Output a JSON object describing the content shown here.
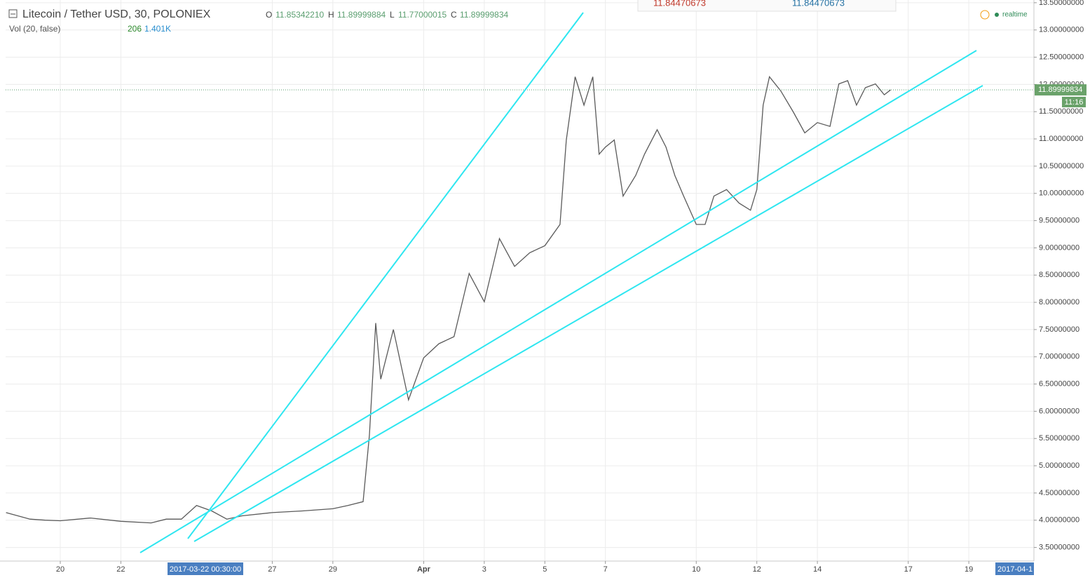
{
  "header": {
    "title": "Litecoin / Tether USD, 30, POLONIEX",
    "o_label": "O",
    "o": "11.85342210",
    "h_label": "H",
    "h": "11.89999884",
    "l_label": "L",
    "l": "11.77000015",
    "c_label": "C",
    "c": "11.89999834",
    "vol_label": "Vol (20, false)",
    "vol": "206",
    "vol_ma": "1.401K",
    "realtime": "realtime",
    "box_left": "11.84470673",
    "box_right": "11.84470673",
    "countdown": "11:16",
    "crosshair_date": "2017-03-22 00:30:00",
    "right_date": "2017-04-1"
  },
  "chart_data": {
    "type": "line",
    "color": "#5a5a5a",
    "x": [
      "2017-03-18 05:00",
      "2017-03-19 00:00",
      "2017-03-19 12:00",
      "2017-03-20 00:00",
      "2017-03-21 00:00",
      "2017-03-22 00:00",
      "2017-03-23 00:00",
      "2017-03-23 12:00",
      "2017-03-24 00:00",
      "2017-03-24 12:00",
      "2017-03-25 00:00",
      "2017-03-25 12:00",
      "2017-03-26 00:00",
      "2017-03-27 00:00",
      "2017-03-28 00:00",
      "2017-03-29 00:00",
      "2017-03-29 12:00",
      "2017-03-30 00:00",
      "2017-03-30 05:00",
      "2017-03-30 10:00",
      "2017-03-30 14:00",
      "2017-03-31 00:00",
      "2017-03-31 12:00",
      "2017-04-01 00:00",
      "2017-04-01 12:00",
      "2017-04-02 00:00",
      "2017-04-02 12:00",
      "2017-04-03 00:00",
      "2017-04-03 12:00",
      "2017-04-04 00:00",
      "2017-04-04 12:00",
      "2017-04-05 00:00",
      "2017-04-05 12:00",
      "2017-04-05 17:00",
      "2017-04-06 00:00",
      "2017-04-06 07:00",
      "2017-04-06 14:00",
      "2017-04-06 19:00",
      "2017-04-07 00:00",
      "2017-04-07 07:00",
      "2017-04-07 14:00",
      "2017-04-08 00:00",
      "2017-04-08 07:00",
      "2017-04-08 17:00",
      "2017-04-09 00:00",
      "2017-04-09 07:00",
      "2017-04-09 14:00",
      "2017-04-10 00:00",
      "2017-04-10 07:00",
      "2017-04-10 14:00",
      "2017-04-11 00:00",
      "2017-04-11 10:00",
      "2017-04-11 19:00",
      "2017-04-12 00:00",
      "2017-04-12 05:00",
      "2017-04-12 10:00",
      "2017-04-12 19:00",
      "2017-04-13 05:00",
      "2017-04-13 14:00",
      "2017-04-14 00:00",
      "2017-04-14 10:00",
      "2017-04-14 17:00",
      "2017-04-15 00:00",
      "2017-04-15 07:00",
      "2017-04-15 14:00",
      "2017-04-15 22:00",
      "2017-04-16 05:00",
      "2017-04-16 10:00"
    ],
    "values": [
      4.14,
      4.02,
      4.0,
      3.99,
      4.04,
      3.98,
      3.95,
      4.02,
      4.02,
      4.27,
      4.17,
      4.02,
      4.08,
      4.14,
      4.17,
      4.21,
      4.27,
      4.34,
      5.56,
      7.62,
      6.59,
      7.5,
      6.21,
      6.98,
      7.24,
      7.37,
      8.53,
      8.01,
      9.17,
      8.66,
      8.91,
      9.04,
      9.43,
      10.98,
      12.14,
      11.62,
      12.14,
      10.72,
      10.85,
      10.98,
      9.95,
      10.33,
      10.72,
      11.17,
      10.85,
      10.33,
      9.95,
      9.43,
      9.43,
      9.95,
      10.07,
      9.82,
      9.69,
      10.07,
      11.62,
      12.14,
      11.88,
      11.49,
      11.11,
      11.3,
      11.23,
      12.01,
      12.07,
      11.62,
      11.94,
      12.01,
      11.81,
      11.9
    ],
    "last_price": 11.89999834,
    "xlim": [
      "2017-03-18 04:40",
      "2017-04-21 03:36"
    ],
    "xticks": [
      {
        "value": "2017-03-20",
        "label": "20"
      },
      {
        "value": "2017-03-22",
        "label": "22"
      },
      {
        "value": "2017-03-27",
        "label": "27"
      },
      {
        "value": "2017-03-29",
        "label": "29"
      },
      {
        "value": "2017-04-01",
        "label": "Apr"
      },
      {
        "value": "2017-04-03",
        "label": "3"
      },
      {
        "value": "2017-04-05",
        "label": "5"
      },
      {
        "value": "2017-04-07",
        "label": "7"
      },
      {
        "value": "2017-04-10",
        "label": "10"
      },
      {
        "value": "2017-04-12",
        "label": "12"
      },
      {
        "value": "2017-04-14",
        "label": "14"
      },
      {
        "value": "2017-04-17",
        "label": "17"
      },
      {
        "value": "2017-04-19",
        "label": "19"
      }
    ],
    "ylim": [
      3.25,
      13.55
    ],
    "yticks": [
      {
        "value": 3.5,
        "label": "3.50000000"
      },
      {
        "value": 4,
        "label": "4.00000000"
      },
      {
        "value": 4.5,
        "label": "4.50000000"
      },
      {
        "value": 5,
        "label": "5.00000000"
      },
      {
        "value": 5.5,
        "label": "5.50000000"
      },
      {
        "value": 6,
        "label": "6.00000000"
      },
      {
        "value": 6.5,
        "label": "6.50000000"
      },
      {
        "value": 7,
        "label": "7.00000000"
      },
      {
        "value": 7.5,
        "label": "7.50000000"
      },
      {
        "value": 8,
        "label": "8.00000000"
      },
      {
        "value": 8.5,
        "label": "8.50000000"
      },
      {
        "value": 9,
        "label": "9.00000000"
      },
      {
        "value": 9.5,
        "label": "9.50000000"
      },
      {
        "value": 10,
        "label": "10.00000000"
      },
      {
        "value": 10.5,
        "label": "10.50000000"
      },
      {
        "value": 11,
        "label": "11.00000000"
      },
      {
        "value": 11.5,
        "label": "11.50000000"
      },
      {
        "value": 12,
        "label": "12.00000000"
      },
      {
        "value": 12.5,
        "label": "12.50000000"
      },
      {
        "value": 13,
        "label": "13.00000000"
      },
      {
        "value": 13.5,
        "label": "13.50000000"
      }
    ],
    "grid": true
  }
}
